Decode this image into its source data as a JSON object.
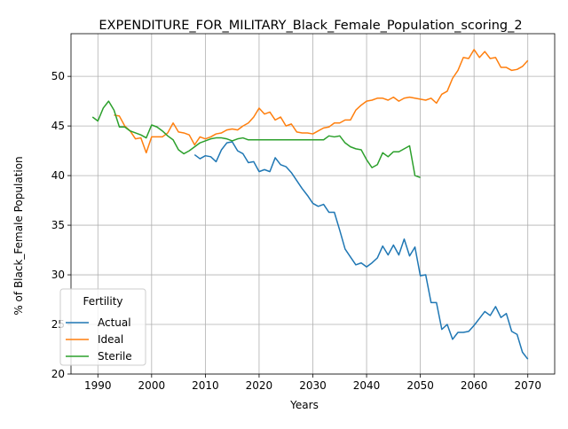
{
  "chart_data": {
    "type": "line",
    "title": "EXPENDITURE_FOR_MILITARY_Black_Female_Population_scoring_2",
    "xlabel": "Years",
    "ylabel": "% of Black_Female Population",
    "xlim": [
      1985,
      2075
    ],
    "ylim": [
      20,
      54.3
    ],
    "xticks": [
      1990,
      2000,
      2010,
      2020,
      2030,
      2040,
      2050,
      2060,
      2070
    ],
    "yticks": [
      20,
      25,
      30,
      35,
      40,
      45,
      50
    ],
    "grid": true,
    "legend": {
      "title": "Fertility",
      "placement": "bottom-left"
    },
    "series": [
      {
        "name": "Actual",
        "color": "#1f77b4",
        "x": [
          2008,
          2009,
          2010,
          2011,
          2012,
          2013,
          2014,
          2015,
          2016,
          2017,
          2018,
          2019,
          2020,
          2021,
          2022,
          2023,
          2024,
          2025,
          2026,
          2027,
          2028,
          2029,
          2030,
          2031,
          2032,
          2033,
          2034,
          2035,
          2036,
          2037,
          2038,
          2039,
          2040,
          2041,
          2042,
          2043,
          2044,
          2045,
          2046,
          2047,
          2048,
          2049,
          2050,
          2051,
          2052,
          2053,
          2054,
          2055,
          2056,
          2057,
          2058,
          2059,
          2060,
          2061,
          2062,
          2063,
          2064,
          2065,
          2066,
          2067,
          2068,
          2069,
          2070
        ],
        "values": [
          42.1,
          41.7,
          42.0,
          41.9,
          41.4,
          42.6,
          43.3,
          43.4,
          42.5,
          42.2,
          41.3,
          41.4,
          40.4,
          40.6,
          40.4,
          41.8,
          41.1,
          40.9,
          40.3,
          39.5,
          38.7,
          38.0,
          37.2,
          36.9,
          37.1,
          36.3,
          36.3,
          34.5,
          32.6,
          31.8,
          31.0,
          31.2,
          30.8,
          31.2,
          31.7,
          32.9,
          32.0,
          33.0,
          32.0,
          33.6,
          31.9,
          32.8,
          29.9,
          30.0,
          27.2,
          27.2,
          24.5,
          25.0,
          23.5,
          24.2,
          24.2,
          24.3,
          24.9,
          25.6,
          26.3,
          25.9,
          26.8,
          25.7,
          26.1,
          24.3,
          24.0,
          22.2,
          21.5
        ]
      },
      {
        "name": "Ideal",
        "color": "#ff7f0e",
        "x": [
          1993,
          1994,
          1995,
          1996,
          1997,
          1998,
          1999,
          2000,
          2001,
          2002,
          2003,
          2004,
          2005,
          2006,
          2007,
          2008,
          2009,
          2010,
          2011,
          2012,
          2013,
          2014,
          2015,
          2016,
          2017,
          2018,
          2019,
          2020,
          2021,
          2022,
          2023,
          2024,
          2025,
          2026,
          2027,
          2028,
          2029,
          2030,
          2031,
          2032,
          2033,
          2034,
          2035,
          2036,
          2037,
          2038,
          2039,
          2040,
          2041,
          2042,
          2043,
          2044,
          2045,
          2046,
          2047,
          2048,
          2049,
          2050,
          2051,
          2052,
          2053,
          2054,
          2055,
          2056,
          2057,
          2058,
          2059,
          2060,
          2061,
          2062,
          2063,
          2064,
          2065,
          2066,
          2067,
          2068,
          2069,
          2070
        ],
        "values": [
          46.1,
          46.0,
          45.0,
          44.5,
          43.7,
          43.8,
          42.3,
          43.9,
          43.9,
          43.9,
          44.3,
          45.3,
          44.4,
          44.3,
          44.1,
          43.1,
          43.9,
          43.7,
          43.9,
          44.2,
          44.3,
          44.6,
          44.7,
          44.6,
          45.0,
          45.3,
          45.9,
          46.8,
          46.2,
          46.4,
          45.6,
          45.9,
          45.0,
          45.2,
          44.4,
          44.3,
          44.3,
          44.2,
          44.5,
          44.8,
          44.9,
          45.3,
          45.3,
          45.6,
          45.6,
          46.6,
          47.1,
          47.5,
          47.6,
          47.8,
          47.8,
          47.6,
          47.9,
          47.5,
          47.8,
          47.9,
          47.8,
          47.7,
          47.6,
          47.8,
          47.3,
          48.2,
          48.5,
          49.8,
          50.6,
          51.9,
          51.8,
          52.7,
          51.9,
          52.5,
          51.8,
          51.9,
          50.9,
          50.9,
          50.6,
          50.7,
          51.0,
          51.6
        ]
      },
      {
        "name": "Sterile",
        "color": "#2ca02c",
        "x": [
          1989,
          1990,
          1991,
          1992,
          1993,
          1994,
          1995,
          1996,
          1997,
          1998,
          1999,
          2000,
          2001,
          2002,
          2003,
          2004,
          2005,
          2006,
          2007,
          2008,
          2009,
          2010,
          2011,
          2012,
          2013,
          2014,
          2015,
          2016,
          2017,
          2018,
          2019,
          2020,
          2021,
          2022,
          2023,
          2024,
          2025,
          2026,
          2027,
          2028,
          2029,
          2030,
          2031,
          2032,
          2033,
          2034,
          2035,
          2036,
          2037,
          2038,
          2039,
          2040,
          2041,
          2042,
          2043,
          2044,
          2045,
          2046,
          2047,
          2048,
          2049,
          2050
        ],
        "values": [
          45.9,
          45.5,
          46.8,
          47.5,
          46.6,
          44.9,
          44.9,
          44.5,
          44.3,
          44.1,
          43.8,
          45.1,
          44.9,
          44.5,
          44.0,
          43.6,
          42.6,
          42.2,
          42.5,
          42.9,
          43.3,
          43.5,
          43.7,
          43.8,
          43.8,
          43.7,
          43.5,
          43.7,
          43.8,
          43.6,
          43.6,
          43.6,
          43.6,
          43.6,
          43.6,
          43.6,
          43.6,
          43.6,
          43.6,
          43.6,
          43.6,
          43.6,
          43.6,
          43.6,
          44.0,
          43.9,
          44.0,
          43.3,
          42.9,
          42.7,
          42.6,
          41.6,
          40.8,
          41.1,
          42.3,
          41.9,
          42.4,
          42.4,
          42.7,
          43.0,
          40.0,
          39.8
        ]
      }
    ]
  }
}
